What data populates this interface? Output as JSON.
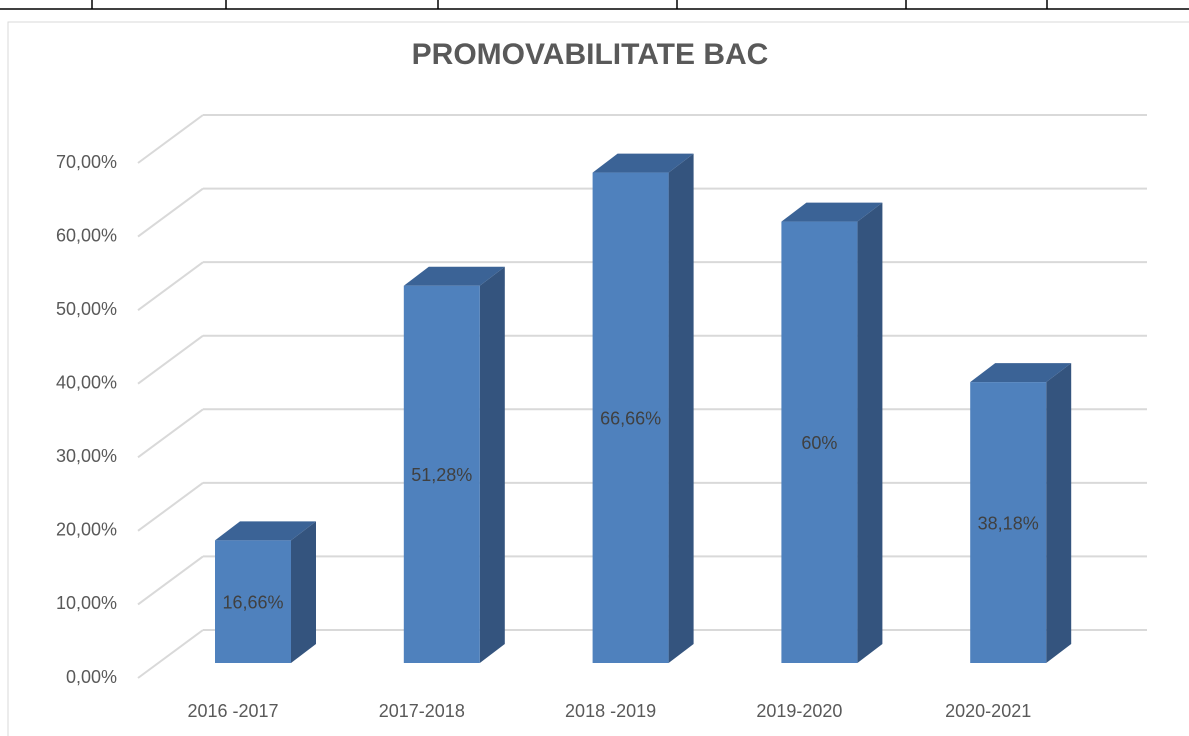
{
  "chart_data": {
    "type": "bar3d",
    "title": "PROMOVABILITATE BAC",
    "categories": [
      "2016 -2017",
      "2017-2018",
      "2018 -2019",
      "2019-2020",
      "2020-2021"
    ],
    "values": [
      16.66,
      51.28,
      66.66,
      60,
      38.18
    ],
    "value_labels": [
      "16,66%",
      "51,28%",
      "66,66%",
      "60%",
      "38,18%"
    ],
    "color": "#4f81bd",
    "ylim": [
      0,
      70
    ],
    "yticks": [
      {
        "value": 0,
        "label": "0,00%"
      },
      {
        "value": 10,
        "label": "10,00%"
      },
      {
        "value": 20,
        "label": "20,00%"
      },
      {
        "value": 30,
        "label": "30,00%"
      },
      {
        "value": 40,
        "label": "40,00%"
      },
      {
        "value": 50,
        "label": "50,00%"
      },
      {
        "value": 60,
        "label": "60,00%"
      },
      {
        "value": 70,
        "label": "70,00%"
      }
    ],
    "grid": true
  }
}
